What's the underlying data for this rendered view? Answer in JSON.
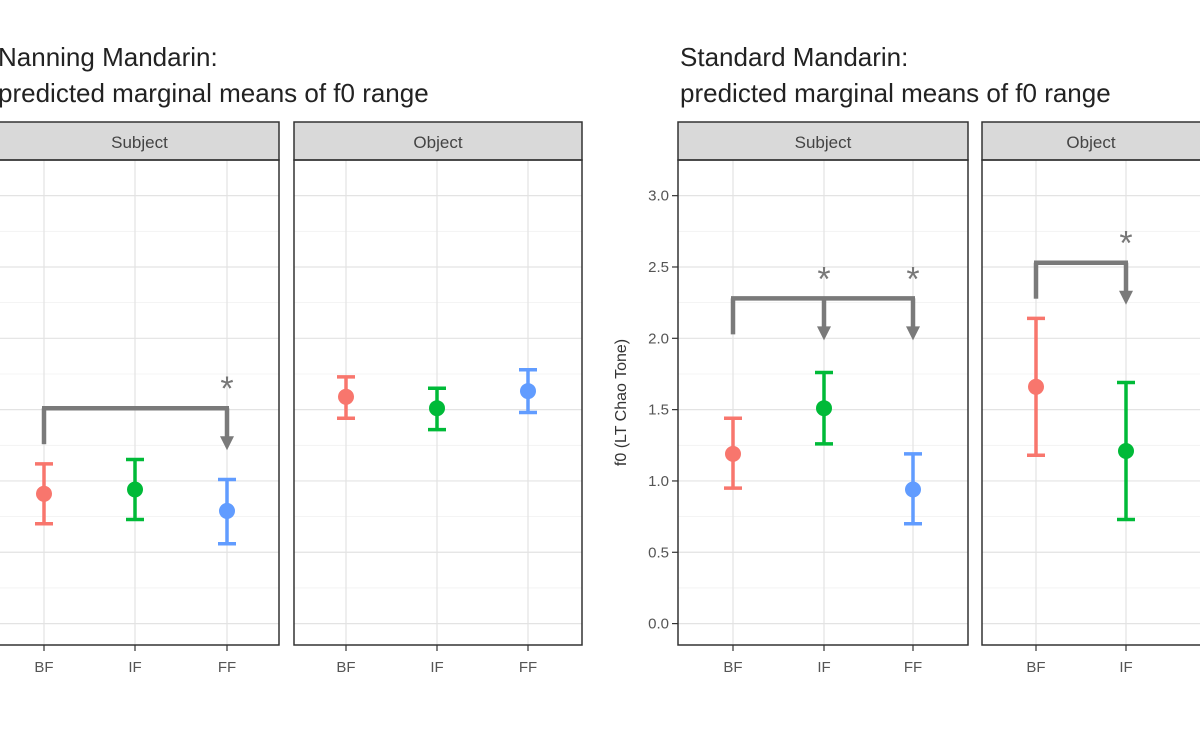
{
  "chart_data": [
    {
      "type": "scatter",
      "subtype": "point-range with significance brackets",
      "title_lines": [
        "Nanning Mandarin:",
        "predicted marginal means of f0 range"
      ],
      "ylabel": "",
      "ylim": [
        -0.15,
        3.25
      ],
      "yticks_labeled": false,
      "categories": [
        "BF",
        "IF",
        "FF"
      ],
      "colors": {
        "BF": "#F8766D",
        "IF": "#00BA38",
        "FF": "#619CFF"
      },
      "grid": true,
      "facets": [
        {
          "label": "Subject",
          "points": [
            {
              "x": "BF",
              "mean": 0.91,
              "lower": 0.7,
              "upper": 1.12
            },
            {
              "x": "IF",
              "mean": 0.94,
              "lower": 0.73,
              "upper": 1.15
            },
            {
              "x": "FF",
              "mean": 0.79,
              "lower": 0.56,
              "upper": 1.01
            }
          ],
          "brackets": [
            {
              "from": "BF",
              "to": [
                "FF"
              ],
              "level": 1.51,
              "label": "*"
            }
          ]
        },
        {
          "label": "Object",
          "points": [
            {
              "x": "BF",
              "mean": 1.59,
              "lower": 1.44,
              "upper": 1.73
            },
            {
              "x": "IF",
              "mean": 1.51,
              "lower": 1.36,
              "upper": 1.65
            },
            {
              "x": "FF",
              "mean": 1.63,
              "lower": 1.48,
              "upper": 1.78
            }
          ],
          "brackets": []
        }
      ]
    },
    {
      "type": "scatter",
      "subtype": "point-range with significance brackets",
      "title_lines": [
        "Standard Mandarin:",
        "predicted marginal means of f0 range"
      ],
      "ylabel": "f0 (LT Chao Tone)",
      "ylim": [
        -0.15,
        3.25
      ],
      "yticks": [
        "0.0",
        "0.5",
        "1.0",
        "1.5",
        "2.0",
        "2.5",
        "3.0"
      ],
      "categories": [
        "BF",
        "IF",
        "FF"
      ],
      "colors": {
        "BF": "#F8766D",
        "IF": "#00BA38",
        "FF": "#619CFF"
      },
      "grid": true,
      "facets": [
        {
          "label": "Subject",
          "points": [
            {
              "x": "BF",
              "mean": 1.19,
              "lower": 0.95,
              "upper": 1.44
            },
            {
              "x": "IF",
              "mean": 1.51,
              "lower": 1.26,
              "upper": 1.76
            },
            {
              "x": "FF",
              "mean": 0.94,
              "lower": 0.7,
              "upper": 1.19
            }
          ],
          "brackets": [
            {
              "from": "BF",
              "to": [
                "IF",
                "FF"
              ],
              "level": 2.28,
              "label": "*"
            }
          ]
        },
        {
          "label": "Object",
          "points": [
            {
              "x": "BF",
              "mean": 1.66,
              "lower": 1.18,
              "upper": 2.14
            },
            {
              "x": "IF",
              "mean": 1.21,
              "lower": 0.73,
              "upper": 1.69
            }
          ],
          "brackets": [
            {
              "from": "BF",
              "to": [
                "IF"
              ],
              "level": 2.53,
              "label": "*"
            }
          ]
        }
      ]
    }
  ]
}
